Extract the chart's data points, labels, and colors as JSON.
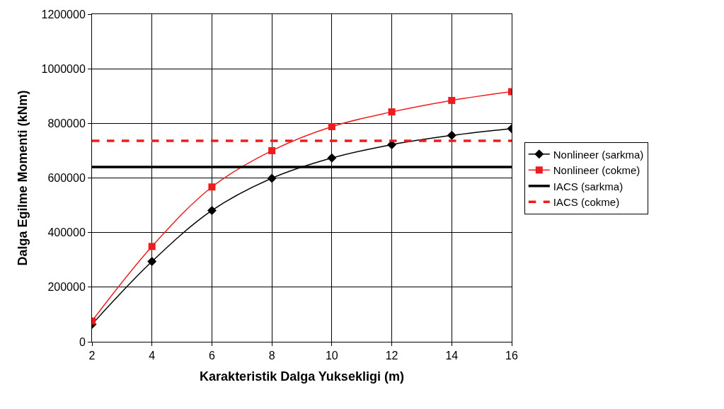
{
  "chart_data": {
    "type": "line",
    "xlabel": "Karakteristik Dalga Yuksekligi (m)",
    "ylabel": "Dalga Egilme Momenti (kNm)",
    "x": [
      2,
      4,
      6,
      8,
      10,
      12,
      14,
      16
    ],
    "series": [
      {
        "name": "Nonlineer (sarkma)",
        "color": "#000000",
        "values": [
          64000,
          294000,
          481000,
          599000,
          673000,
          722000,
          756000,
          781000
        ],
        "marker": "diamond"
      },
      {
        "name": "Nonlineer (cokme)",
        "color": "#ee1c1c",
        "values": [
          76000,
          349000,
          567000,
          700000,
          788000,
          842000,
          884000,
          916000
        ],
        "marker": "square"
      }
    ],
    "ref_lines": [
      {
        "axis": "y",
        "value": 640000,
        "label": "IACS (sarkma)",
        "color": "#000000",
        "line_style": "solid"
      },
      {
        "axis": "y",
        "value": 736000,
        "label": "IACS (cokme)",
        "color": "#ee1c1c",
        "line_style": "dashed"
      }
    ],
    "xlim": [
      2,
      16
    ],
    "xticks": [
      2,
      4,
      6,
      8,
      10,
      12,
      14,
      16
    ],
    "ylim": [
      0,
      1200000
    ],
    "yticks": [
      0,
      200000,
      400000,
      600000,
      800000,
      1000000,
      1200000
    ],
    "grid": true,
    "legend": "right"
  }
}
